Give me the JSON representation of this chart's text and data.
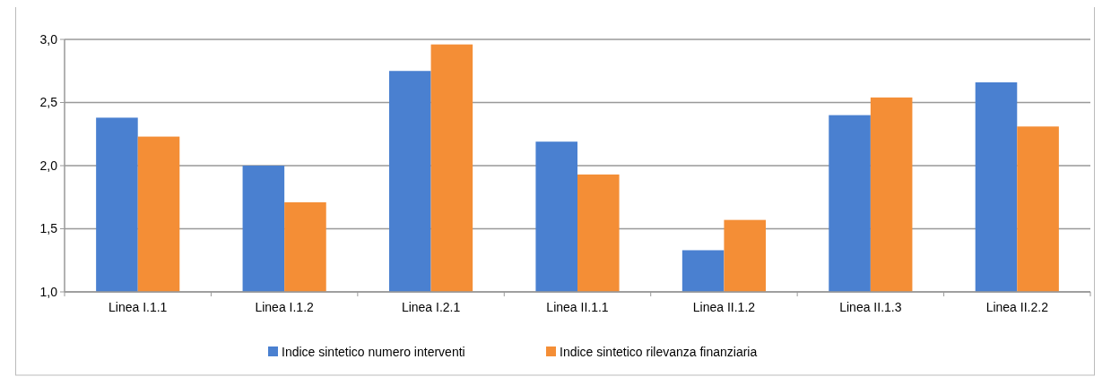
{
  "chart_data": {
    "type": "bar",
    "categories": [
      "Linea I.1.1",
      "Linea I.1.2",
      "Linea I.2.1",
      "Linea II.1.1",
      "Linea II.1.2",
      "Linea II.1.3",
      "Linea II.2.2"
    ],
    "series": [
      {
        "name": "Indice sintetico numero interventi",
        "color": "#4a80d0",
        "values": [
          2.38,
          2.0,
          2.75,
          2.19,
          1.33,
          2.4,
          2.66
        ]
      },
      {
        "name": "Indice sintetico rilevanza finanziaria",
        "color": "#f48e36",
        "values": [
          2.23,
          1.71,
          2.96,
          1.93,
          1.57,
          2.54,
          2.31
        ]
      }
    ],
    "ylim": [
      1,
      3
    ],
    "yticks": [
      {
        "value": 1,
        "label": "1,0"
      },
      {
        "value": 1.5,
        "label": "1,5"
      },
      {
        "value": 2,
        "label": "2,0"
      },
      {
        "value": 2.5,
        "label": "2,5"
      },
      {
        "value": 3,
        "label": "3,0"
      }
    ],
    "grid": "y",
    "legend": "bottom"
  }
}
